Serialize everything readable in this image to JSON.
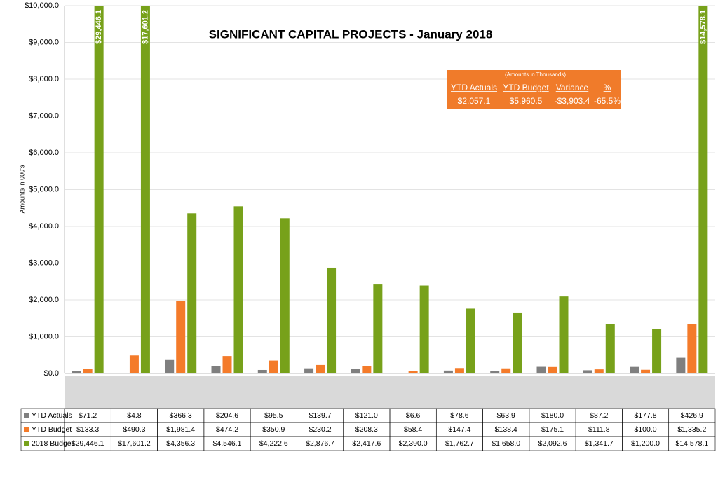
{
  "chart_data": {
    "type": "bar",
    "title": "SIGNIFICANT CAPITAL PROJECTS - January 2018",
    "y_label": "Amounts in 000's",
    "categories": [
      null,
      null,
      null,
      null,
      null,
      null,
      null,
      null,
      null,
      null,
      null,
      null,
      null,
      null
    ],
    "series": [
      {
        "name": "YTD Actuals",
        "color": "#7f7f7f",
        "values": [
          71.2,
          4.8,
          366.3,
          204.6,
          95.5,
          139.7,
          121.0,
          6.6,
          78.6,
          63.9,
          180.0,
          87.2,
          177.8,
          426.9
        ],
        "value_labels": [
          "$71.2",
          "$4.8",
          "$366.3",
          "$204.6",
          "$95.5",
          "$139.7",
          "$121.0",
          "$6.6",
          "$78.6",
          "$63.9",
          "$180.0",
          "$87.2",
          "$177.8",
          "$426.9"
        ]
      },
      {
        "name": "YTD Budget",
        "color": "#f47b2a",
        "values": [
          133.3,
          490.3,
          1981.4,
          474.2,
          350.9,
          230.2,
          208.3,
          58.4,
          147.4,
          138.4,
          175.1,
          111.8,
          100.0,
          1335.2
        ],
        "value_labels": [
          "$133.3",
          "$490.3",
          "$1,981.4",
          "$474.2",
          "$350.9",
          "$230.2",
          "$208.3",
          "$58.4",
          "$147.4",
          "$138.4",
          "$175.1",
          "$111.8",
          "$100.0",
          "$1,335.2"
        ]
      },
      {
        "name": "2018 Budget",
        "color": "#77a11a",
        "values": [
          29446.1,
          17601.2,
          4356.3,
          4546.1,
          4222.6,
          2876.7,
          2417.6,
          2390.0,
          1762.7,
          1658.0,
          2092.6,
          1341.7,
          1200.0,
          14578.1
        ],
        "value_labels": [
          "$29,446.1",
          "$17,601.2",
          "$4,356.3",
          "$4,546.1",
          "$4,222.6",
          "$2,876.7",
          "$2,417.6",
          "$2,390.0",
          "$1,762.7",
          "$1,658.0",
          "$2,092.6",
          "$1,341.7",
          "$1,200.0",
          "$14,578.1"
        ]
      }
    ],
    "ylim": [
      0,
      10000
    ],
    "yticks": [
      {
        "value": 0,
        "label": "$0.0"
      },
      {
        "value": 1000,
        "label": "$1,000.0"
      },
      {
        "value": 2000,
        "label": "$2,000.0"
      },
      {
        "value": 3000,
        "label": "$3,000.0"
      },
      {
        "value": 4000,
        "label": "$4,000.0"
      },
      {
        "value": 5000,
        "label": "$5,000.0"
      },
      {
        "value": 6000,
        "label": "$6,000.0"
      },
      {
        "value": 7000,
        "label": "$7,000.0"
      },
      {
        "value": 8000,
        "label": "$8,000.0"
      },
      {
        "value": 9000,
        "label": "$9,000.0"
      },
      {
        "value": 10000,
        "label": "$10,000.0"
      }
    ],
    "grid": true,
    "summary_box": {
      "note": "(Amounts in Thousands)",
      "columns": [
        "YTD Actuals",
        "YTD Budget",
        "Variance",
        "%"
      ],
      "cells": [
        "$2,057.1",
        "$5,960.5",
        "-$3,903.4",
        "-65.5%"
      ],
      "color": "#f07b2a"
    }
  }
}
